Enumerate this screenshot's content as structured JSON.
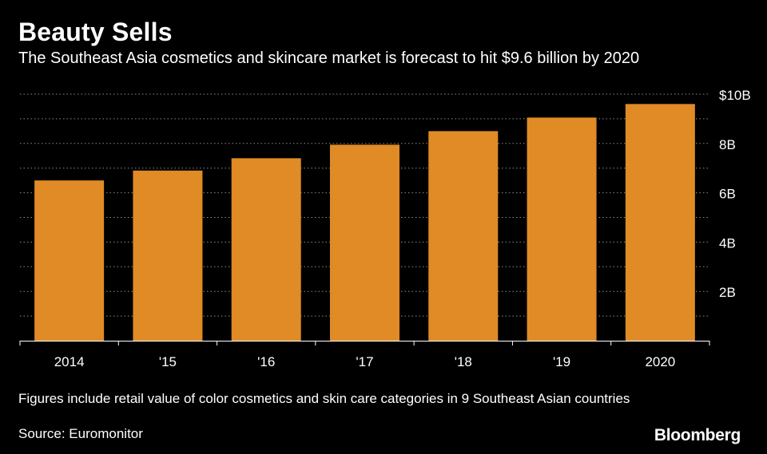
{
  "title": "Beauty Sells",
  "subtitle": "The Southeast Asia cosmetics and skincare market is forecast to hit $9.6 billion by 2020",
  "footnote": "Figures include retail value of color cosmetics and skin care categories in 9 Southeast Asian countries",
  "source": "Source: Euromonitor",
  "brand": "Bloomberg",
  "colors": {
    "bar": "#E08B26",
    "background": "#000000",
    "grid": "#8c8c8c",
    "text": "#ffffff"
  },
  "chart_data": {
    "type": "bar",
    "categories": [
      "2014",
      "'15",
      "'16",
      "'17",
      "'18",
      "'19",
      "2020"
    ],
    "values": [
      6.5,
      6.9,
      7.4,
      7.95,
      8.5,
      9.05,
      9.6
    ],
    "unit": "billion USD",
    "ylim": [
      0,
      10
    ],
    "yticks": [
      2,
      4,
      6,
      8,
      10
    ],
    "ytick_labels": [
      "2B",
      "4B",
      "6B",
      "8B",
      "$10B"
    ],
    "y_axis_side": "right",
    "grid": "dotted horizontal",
    "legend": "none"
  }
}
